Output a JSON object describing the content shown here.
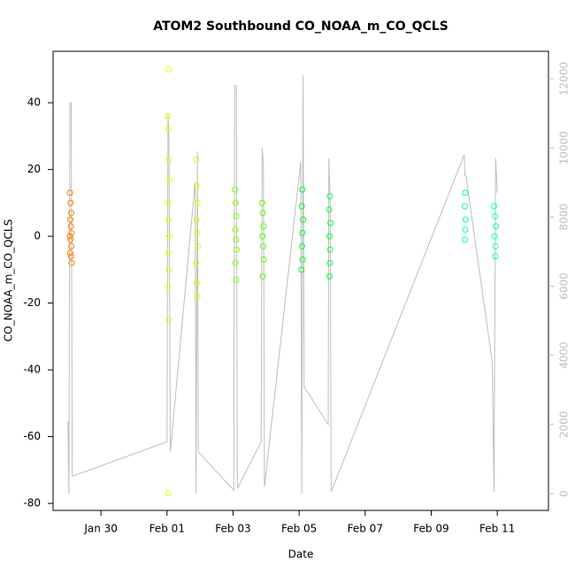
{
  "chart_data": {
    "type": "scatter",
    "title": "ATOM2 Southbound CO_NOAA_m_CO_QCLS",
    "x_label": "Date",
    "y_label": "CO_NOAA_m_CO_QCLS",
    "xlim": [
      28.55,
      43.55
    ],
    "xticks": [
      {
        "value": 30,
        "label": "Jan 30"
      },
      {
        "value": 32,
        "label": "Feb 01"
      },
      {
        "value": 34,
        "label": "Feb 03"
      },
      {
        "value": 36,
        "label": "Feb 05"
      },
      {
        "value": 38,
        "label": "Feb 07"
      },
      {
        "value": 40,
        "label": "Feb 09"
      },
      {
        "value": 42,
        "label": "Feb 11"
      }
    ],
    "ylim": [
      -82.1,
      55.4
    ],
    "yticks": [
      -80,
      -60,
      -40,
      -20,
      0,
      20,
      40
    ],
    "y2lim": [
      -486,
      12793
    ],
    "y2ticks": [
      0,
      2000,
      4000,
      6000,
      8000,
      10000,
      12000
    ],
    "series": [
      {
        "type": "line",
        "axis": "y2",
        "color": "#bebebe",
        "x": [
          29.0,
          29.03,
          29.06,
          29.1,
          29.13,
          32.0,
          32.03,
          32.06,
          32.1,
          32.85,
          32.88,
          32.92,
          32.95,
          34.02,
          34.05,
          34.1,
          34.13,
          34.85,
          34.88,
          34.92,
          34.95,
          36.05,
          36.08,
          36.12,
          36.15,
          36.88,
          36.9,
          36.94,
          36.97,
          41.0,
          41.02,
          41.05,
          41.85,
          41.9,
          41.95,
          42.0
        ],
        "values": [
          2100,
          0,
          11300,
          11300,
          500,
          1500,
          11000,
          10200,
          1200,
          9000,
          0,
          9900,
          1200,
          100,
          11800,
          11800,
          150,
          1500,
          10000,
          9500,
          200,
          9600,
          0,
          12100,
          3100,
          2000,
          9700,
          8600,
          50,
          9800,
          9200,
          9200,
          3800,
          50,
          9700,
          8700
        ]
      },
      {
        "color": "#ff8000",
        "x": [
          29.06,
          29.08,
          29.1,
          29.07,
          29.09,
          29.11,
          29.06,
          29.08,
          29.1,
          29.07,
          29.09,
          29.11
        ],
        "values": [
          13,
          10,
          7,
          5,
          3,
          1,
          0,
          -1,
          -3,
          -5,
          -6,
          -8
        ]
      },
      {
        "color": "#e6ff00",
        "x": [
          32.05,
          32.02,
          32.04,
          32.06,
          32.08,
          32.03,
          32.05,
          32.07,
          32.04,
          32.06,
          32.03,
          32.05,
          32.04
        ],
        "values": [
          50,
          36,
          32,
          23,
          17,
          10,
          5,
          0,
          -5,
          -10,
          -15,
          -25,
          -77
        ]
      },
      {
        "color": "#d4ff00",
        "x": [
          32.88,
          32.9,
          32.92,
          32.89,
          32.91,
          32.93,
          32.88,
          32.9,
          32.92
        ],
        "values": [
          23,
          15,
          10,
          5,
          1,
          -3,
          -8,
          -14,
          -18
        ]
      },
      {
        "color": "#88ff00",
        "x": [
          34.06,
          34.08,
          34.1,
          34.07,
          34.09,
          34.11,
          34.07,
          34.09
        ],
        "values": [
          14,
          10,
          6,
          2,
          -1,
          -4,
          -8,
          -13
        ]
      },
      {
        "color": "#5cff00",
        "x": [
          34.88,
          34.9,
          34.92,
          34.89,
          34.91,
          34.93,
          34.9
        ],
        "values": [
          10,
          7,
          3,
          0,
          -3,
          -7,
          -12
        ]
      },
      {
        "color": "#00ff22",
        "x": [
          36.1,
          36.08,
          36.12,
          36.1,
          36.09,
          36.11,
          36.07
        ],
        "values": [
          14,
          9,
          5,
          1,
          -3,
          -7,
          -10
        ]
      },
      {
        "color": "#00ff44",
        "x": [
          36.93,
          36.91,
          36.95,
          36.92,
          36.94,
          36.93,
          36.92
        ],
        "values": [
          12,
          8,
          4,
          0,
          -4,
          -8,
          -12
        ]
      },
      {
        "color": "#00ffaa",
        "x": [
          41.03,
          41.02,
          41.04,
          41.03,
          41.02
        ],
        "values": [
          13,
          9,
          5,
          2,
          -1
        ]
      },
      {
        "color": "#00ffc8",
        "x": [
          41.9,
          41.93,
          41.96,
          41.92,
          41.95,
          41.94
        ],
        "values": [
          9,
          6,
          3,
          0,
          -3,
          -6
        ]
      }
    ]
  }
}
